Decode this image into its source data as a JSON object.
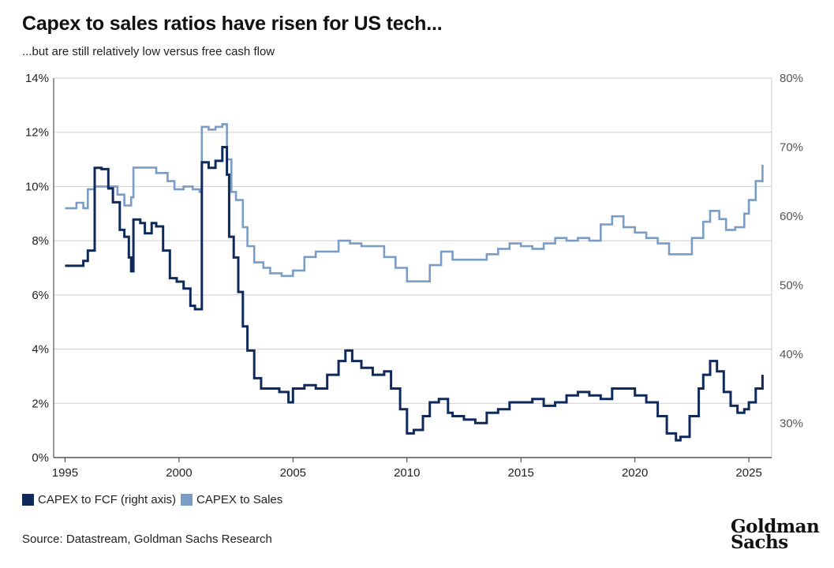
{
  "header": {
    "title": "Capex to sales ratios have risen for US tech...",
    "subtitle": "...but are still relatively low versus free cash flow"
  },
  "legend": {
    "fcf_label": "CAPEX to FCF (right axis)",
    "sales_label": "CAPEX to Sales"
  },
  "footer": {
    "source": "Source: Datastream, Goldman Sachs Research",
    "logo_line1": "Goldman",
    "logo_line2": "Sachs"
  },
  "colors": {
    "fcf": "#0f2a5a",
    "sales": "#7b9cc4",
    "grid": "#cfcfcf",
    "axis": "#333333"
  },
  "chart_data": {
    "type": "line",
    "xlim": [
      1994.5,
      2026.0
    ],
    "x_ticks": [
      1995,
      2000,
      2005,
      2010,
      2015,
      2020,
      2025
    ],
    "left_axis": {
      "ylim": [
        0,
        14
      ],
      "ticks": [
        "0%",
        "2%",
        "4%",
        "6%",
        "8%",
        "10%",
        "12%",
        "14%"
      ]
    },
    "right_axis": {
      "ylim": [
        25,
        80
      ],
      "ticks": [
        "30%",
        "40%",
        "50%",
        "60%",
        "70%",
        "80%"
      ]
    },
    "grid": true,
    "series": [
      {
        "name": "CAPEX to Sales",
        "axis": "left",
        "x": [
          1995.0,
          1995.5,
          1995.8,
          1996.0,
          1996.3,
          1996.8,
          1997.3,
          1997.6,
          1997.9,
          1998.0,
          1998.5,
          1999.0,
          1999.5,
          1999.8,
          2000.2,
          2000.6,
          2000.9,
          2001.0,
          2001.3,
          2001.6,
          2001.9,
          2002.1,
          2002.3,
          2002.5,
          2002.8,
          2003.0,
          2003.3,
          2003.7,
          2004.0,
          2004.5,
          2005.0,
          2005.5,
          2006.0,
          2006.5,
          2007.0,
          2007.5,
          2008.0,
          2008.5,
          2009.0,
          2009.5,
          2010.0,
          2010.5,
          2011.0,
          2011.5,
          2012.0,
          2012.5,
          2013.0,
          2013.5,
          2014.0,
          2014.5,
          2015.0,
          2015.5,
          2016.0,
          2016.5,
          2017.0,
          2017.5,
          2018.0,
          2018.5,
          2019.0,
          2019.5,
          2020.0,
          2020.5,
          2021.0,
          2021.5,
          2022.0,
          2022.5,
          2023.0,
          2023.3,
          2023.7,
          2024.0,
          2024.4,
          2024.8,
          2025.0,
          2025.3,
          2025.6
        ],
        "values": [
          9.2,
          9.4,
          9.2,
          9.9,
          10.0,
          10.0,
          9.7,
          9.3,
          9.6,
          10.7,
          10.7,
          10.5,
          10.2,
          9.9,
          10.0,
          9.9,
          9.8,
          12.2,
          12.1,
          12.2,
          12.3,
          11.0,
          9.8,
          9.5,
          8.5,
          7.8,
          7.2,
          7.0,
          6.8,
          6.7,
          6.9,
          7.4,
          7.6,
          7.6,
          8.0,
          7.9,
          7.8,
          7.8,
          7.4,
          7.0,
          6.5,
          6.5,
          7.1,
          7.6,
          7.3,
          7.3,
          7.3,
          7.5,
          7.7,
          7.9,
          7.8,
          7.7,
          7.9,
          8.1,
          8.0,
          8.1,
          8.0,
          8.6,
          8.9,
          8.5,
          8.3,
          8.1,
          7.9,
          7.5,
          7.5,
          8.1,
          8.7,
          9.1,
          8.8,
          8.4,
          8.5,
          9.0,
          9.5,
          10.2,
          10.8
        ]
      },
      {
        "name": "CAPEX to FCF (right axis)",
        "axis": "right",
        "x": [
          1995.0,
          1995.5,
          1995.8,
          1996.0,
          1996.3,
          1996.6,
          1996.9,
          1997.1,
          1997.4,
          1997.6,
          1997.8,
          1997.9,
          1998.0,
          1998.3,
          1998.5,
          1998.8,
          1999.0,
          1999.3,
          1999.6,
          1999.9,
          2000.2,
          2000.5,
          2000.7,
          2001.0,
          2001.0,
          2001.3,
          2001.6,
          2001.9,
          2002.1,
          2002.2,
          2002.4,
          2002.6,
          2002.8,
          2003.0,
          2003.3,
          2003.6,
          2004.0,
          2004.4,
          2004.8,
          2005.0,
          2005.5,
          2006.0,
          2006.5,
          2007.0,
          2007.3,
          2007.6,
          2008.0,
          2008.5,
          2009.0,
          2009.3,
          2009.7,
          2010.0,
          2010.3,
          2010.7,
          2011.0,
          2011.4,
          2011.8,
          2012.0,
          2012.5,
          2013.0,
          2013.5,
          2014.0,
          2014.5,
          2015.0,
          2015.5,
          2016.0,
          2016.5,
          2017.0,
          2017.5,
          2018.0,
          2018.5,
          2019.0,
          2019.5,
          2020.0,
          2020.5,
          2021.0,
          2021.4,
          2021.8,
          2022.0,
          2022.4,
          2022.8,
          2023.0,
          2023.3,
          2023.6,
          2023.9,
          2024.2,
          2024.5,
          2024.8,
          2025.0,
          2025.3,
          2025.6
        ],
        "values": [
          52.8,
          52.8,
          53.5,
          55.0,
          67.0,
          66.8,
          64.0,
          62.0,
          58.0,
          57.0,
          54.0,
          52.0,
          59.5,
          59.0,
          57.5,
          59.0,
          58.5,
          55.0,
          51.0,
          50.5,
          49.5,
          47.0,
          46.5,
          46.5,
          67.8,
          67.0,
          68.0,
          70.0,
          66.0,
          57.0,
          54.0,
          49.0,
          44.0,
          40.5,
          36.5,
          35.0,
          35.0,
          34.5,
          33.0,
          35.0,
          35.5,
          35.0,
          37.0,
          39.0,
          40.5,
          39.0,
          38.0,
          37.0,
          37.5,
          35.0,
          32.0,
          28.5,
          29.0,
          31.0,
          33.0,
          33.5,
          31.5,
          31.0,
          30.5,
          30.0,
          31.5,
          32.0,
          33.0,
          33.0,
          33.5,
          32.5,
          33.0,
          34.0,
          34.5,
          34.0,
          33.5,
          35.0,
          35.0,
          34.0,
          33.0,
          31.0,
          28.5,
          27.5,
          28.0,
          31.0,
          35.0,
          37.0,
          39.0,
          37.5,
          34.5,
          32.5,
          31.5,
          32.0,
          33.0,
          35.0,
          37.0
        ]
      }
    ]
  }
}
